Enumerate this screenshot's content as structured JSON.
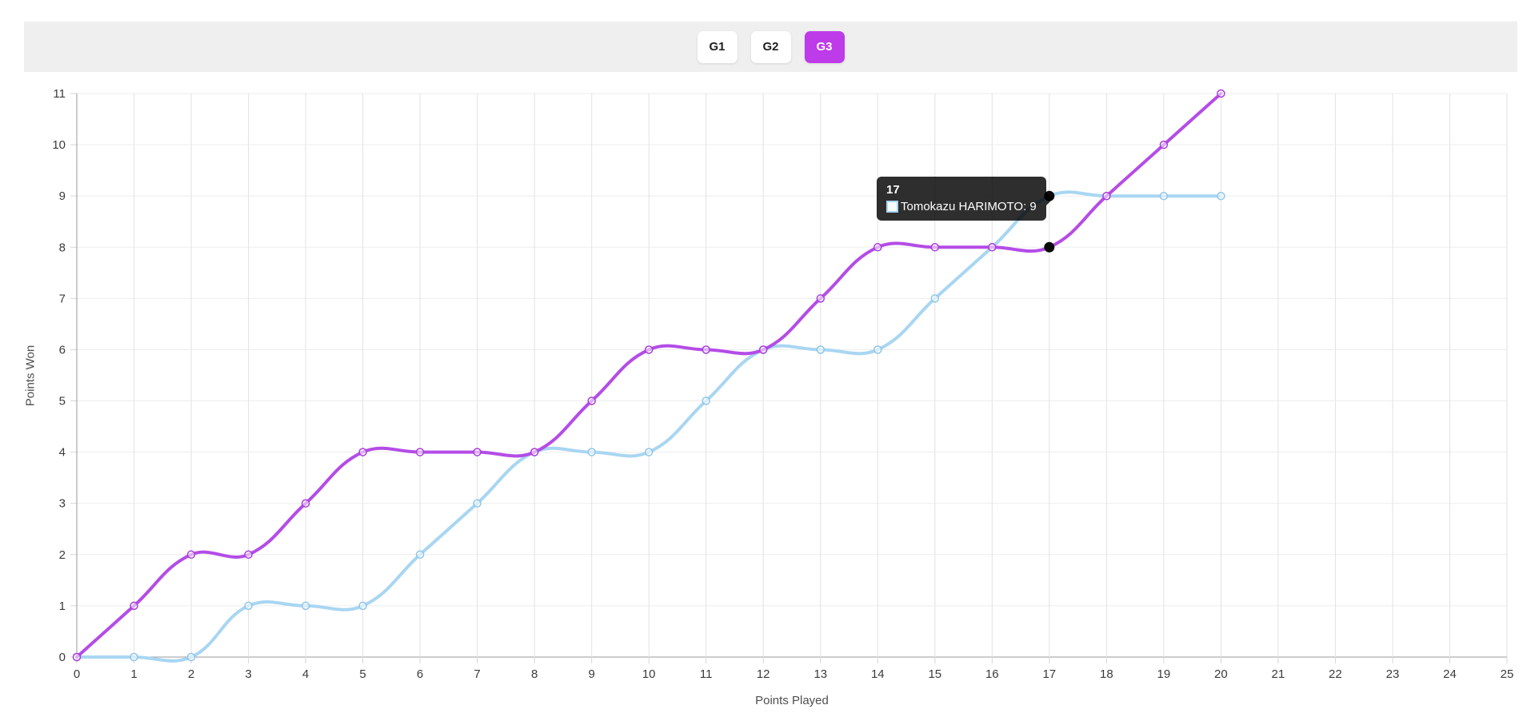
{
  "header": {
    "tabs": [
      {
        "label": "G1",
        "active": false
      },
      {
        "label": "G2",
        "active": false
      },
      {
        "label": "G3",
        "active": true
      }
    ],
    "active_tab": "G3",
    "accent_color": "#bd3be8",
    "band_color": "#efefef"
  },
  "chart_data": {
    "type": "line",
    "x": [
      0,
      1,
      2,
      3,
      4,
      5,
      6,
      7,
      8,
      9,
      10,
      11,
      12,
      13,
      14,
      15,
      16,
      17,
      18,
      19,
      20
    ],
    "series": [
      {
        "name": "",
        "color": "#b44ce6",
        "marker_border": "#a93ddb",
        "values": [
          0,
          1,
          2,
          2,
          3,
          4,
          4,
          4,
          4,
          5,
          6,
          6,
          6,
          7,
          8,
          8,
          8,
          8,
          9,
          10,
          11
        ]
      },
      {
        "name": "Tomokazu HARIMOTO",
        "color": "#a8d6f2",
        "marker_border": "#8fc5ea",
        "values": [
          0,
          0,
          0,
          1,
          1,
          1,
          2,
          3,
          4,
          4,
          4,
          5,
          6,
          6,
          6,
          7,
          8,
          9,
          9,
          9,
          9
        ]
      }
    ],
    "xlabel": "Points Played",
    "ylabel": "Points Won",
    "xlim": [
      0,
      25
    ],
    "ylim": [
      0,
      11
    ],
    "x_tick_step": 1,
    "y_tick_step": 1,
    "grid": true,
    "legend": "none",
    "line_tension": 0.4,
    "tooltip": {
      "title": "17",
      "entries": [
        {
          "label": "Tomokazu HARIMOTO: 9",
          "swatch_fill": "#f4faff",
          "swatch_border": "#a8d6f2"
        }
      ]
    },
    "highlight_points": [
      {
        "series": 1,
        "x": 17,
        "y": 9
      },
      {
        "series": 0,
        "x": 17,
        "y": 8
      }
    ],
    "highlight_color": "#0a0a0a",
    "grid_color_h": "#ededed",
    "grid_color_v": "#e2e2e2",
    "axis_line_color": "#9a9a9a",
    "tick_mark_color": "#d6d6d6",
    "tick_label_color": "#3b3b3b"
  }
}
